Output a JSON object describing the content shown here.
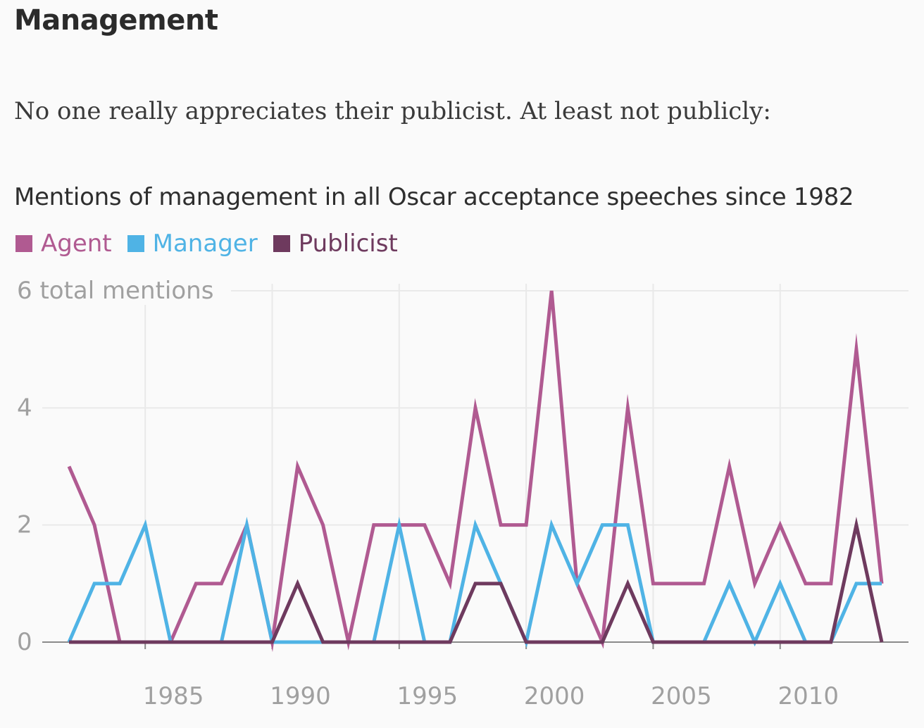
{
  "header": {
    "title": "Management",
    "intro": "No one really appreciates their publicist. At least not publicly:"
  },
  "chart_data": {
    "type": "line",
    "title": "Mentions of management in all Oscar acceptance speeches since 1982",
    "xlabel": "",
    "ylabel": "6 total mentions",
    "x": [
      1982,
      1983,
      1984,
      1985,
      1986,
      1987,
      1988,
      1989,
      1990,
      1991,
      1992,
      1993,
      1994,
      1995,
      1996,
      1997,
      1998,
      1999,
      2000,
      2001,
      2002,
      2003,
      2004,
      2005,
      2006,
      2007,
      2008,
      2009,
      2010,
      2011,
      2012,
      2013,
      2014
    ],
    "xlim": [
      1982,
      2014
    ],
    "ylim": [
      0,
      6
    ],
    "x_ticks": [
      1985,
      1990,
      1995,
      2000,
      2005,
      2010
    ],
    "x_tick_labels": [
      "1985",
      "1990",
      "1995",
      "2000",
      "2005",
      "2010"
    ],
    "y_ticks": [
      0,
      2,
      4,
      6
    ],
    "y_tick_labels": [
      "0",
      "2",
      "4",
      "6 total mentions"
    ],
    "grid": true,
    "legend_position": "top-left",
    "series": [
      {
        "name": "Agent",
        "color": "#b05a91",
        "values": [
          3,
          2,
          0,
          0,
          0,
          1,
          1,
          2,
          0,
          3,
          2,
          0,
          2,
          2,
          2,
          1,
          4,
          2,
          2,
          6,
          1,
          0,
          4,
          1,
          1,
          1,
          3,
          1,
          2,
          1,
          1,
          5,
          1
        ]
      },
      {
        "name": "Manager",
        "color": "#4fb3e5",
        "values": [
          0,
          1,
          1,
          2,
          0,
          0,
          0,
          2,
          0,
          0,
          0,
          0,
          0,
          2,
          0,
          0,
          2,
          1,
          0,
          2,
          1,
          2,
          2,
          0,
          0,
          0,
          1,
          0,
          1,
          0,
          0,
          1,
          1
        ]
      },
      {
        "name": "Publicist",
        "color": "#6e3a5e",
        "values": [
          0,
          0,
          0,
          0,
          0,
          0,
          0,
          0,
          0,
          1,
          0,
          0,
          0,
          0,
          0,
          0,
          1,
          1,
          0,
          0,
          0,
          0,
          1,
          0,
          0,
          0,
          0,
          0,
          0,
          0,
          0,
          2,
          0
        ]
      }
    ]
  }
}
